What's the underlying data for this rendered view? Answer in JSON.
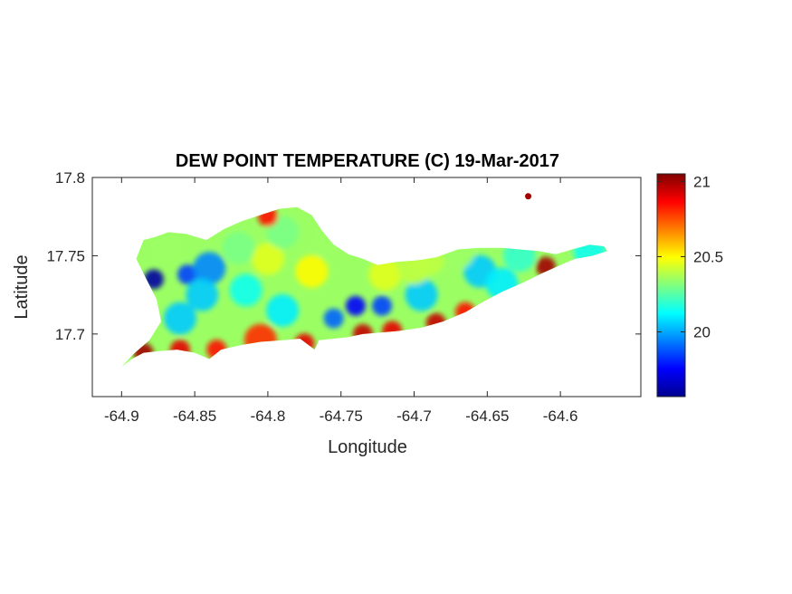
{
  "chart_data": {
    "type": "heatmap",
    "title": "DEW POINT TEMPERATURE (C) 19-Mar-2017",
    "xlabel": "Longitude",
    "ylabel": "Latitude",
    "xlim": [
      -64.92,
      -64.545
    ],
    "ylim": [
      17.66,
      17.8
    ],
    "x_ticks": [
      -64.9,
      -64.85,
      -64.8,
      -64.75,
      -64.7,
      -64.65,
      -64.6
    ],
    "x_tick_labels": [
      "-64.9",
      "-64.85",
      "-64.8",
      "-64.75",
      "-64.7",
      "-64.65",
      "-64.6"
    ],
    "y_ticks": [
      17.8,
      17.75,
      17.7
    ],
    "y_tick_labels": [
      "17.8",
      "17.75",
      "17.7"
    ],
    "colorbar": {
      "colormap": "jet",
      "range": [
        19.57,
        21.05
      ],
      "ticks": [
        20,
        20.5,
        21
      ],
      "tick_labels": [
        "20",
        "20.5",
        "21"
      ]
    },
    "grid": false,
    "island_outline": [
      [
        -64.9,
        17.679
      ],
      [
        -64.893,
        17.684
      ],
      [
        -64.885,
        17.688
      ],
      [
        -64.875,
        17.689
      ],
      [
        -64.862,
        17.69
      ],
      [
        -64.85,
        17.688
      ],
      [
        -64.84,
        17.684
      ],
      [
        -64.832,
        17.69
      ],
      [
        -64.818,
        17.693
      ],
      [
        -64.805,
        17.695
      ],
      [
        -64.79,
        17.696
      ],
      [
        -64.778,
        17.697
      ],
      [
        -64.768,
        17.69
      ],
      [
        -64.765,
        17.696
      ],
      [
        -64.755,
        17.697
      ],
      [
        -64.745,
        17.698
      ],
      [
        -64.735,
        17.7
      ],
      [
        -64.722,
        17.701
      ],
      [
        -64.71,
        17.702
      ],
      [
        -64.695,
        17.704
      ],
      [
        -64.68,
        17.708
      ],
      [
        -64.665,
        17.714
      ],
      [
        -64.652,
        17.721
      ],
      [
        -64.64,
        17.727
      ],
      [
        -64.625,
        17.733
      ],
      [
        -64.612,
        17.739
      ],
      [
        -64.6,
        17.744
      ],
      [
        -64.59,
        17.748
      ],
      [
        -64.578,
        17.75
      ],
      [
        -64.568,
        17.753
      ],
      [
        -64.57,
        17.756
      ],
      [
        -64.58,
        17.757
      ],
      [
        -64.592,
        17.754
      ],
      [
        -64.603,
        17.751
      ],
      [
        -64.615,
        17.753
      ],
      [
        -64.628,
        17.754
      ],
      [
        -64.64,
        17.755
      ],
      [
        -64.655,
        17.755
      ],
      [
        -64.67,
        17.754
      ],
      [
        -64.685,
        17.749
      ],
      [
        -64.698,
        17.747
      ],
      [
        -64.712,
        17.746
      ],
      [
        -64.725,
        17.744
      ],
      [
        -64.735,
        17.748
      ],
      [
        -64.745,
        17.751
      ],
      [
        -64.755,
        17.757
      ],
      [
        -64.763,
        17.766
      ],
      [
        -64.77,
        17.776
      ],
      [
        -64.78,
        17.781
      ],
      [
        -64.792,
        17.78
      ],
      [
        -64.805,
        17.776
      ],
      [
        -64.818,
        17.772
      ],
      [
        -64.83,
        17.767
      ],
      [
        -64.842,
        17.76
      ],
      [
        -64.856,
        17.764
      ],
      [
        -64.868,
        17.765
      ],
      [
        -64.877,
        17.762
      ],
      [
        -64.885,
        17.76
      ],
      [
        -64.89,
        17.748
      ],
      [
        -64.883,
        17.735
      ],
      [
        -64.876,
        17.722
      ],
      [
        -64.873,
        17.708
      ],
      [
        -64.881,
        17.696
      ],
      [
        -64.892,
        17.687
      ],
      [
        -64.9,
        17.679
      ]
    ],
    "cay": [
      -64.622,
      17.788
    ],
    "hotspots": [
      {
        "lon": -64.878,
        "lat": 17.735,
        "value": 19.62
      },
      {
        "lon": -64.855,
        "lat": 17.738,
        "value": 19.85
      },
      {
        "lon": -64.84,
        "lat": 17.742,
        "value": 19.95
      },
      {
        "lon": -64.86,
        "lat": 17.71,
        "value": 20.05
      },
      {
        "lon": -64.845,
        "lat": 17.725,
        "value": 20.05
      },
      {
        "lon": -64.815,
        "lat": 17.728,
        "value": 20.15
      },
      {
        "lon": -64.79,
        "lat": 17.715,
        "value": 20.1
      },
      {
        "lon": -64.74,
        "lat": 17.718,
        "value": 19.75
      },
      {
        "lon": -64.722,
        "lat": 17.718,
        "value": 19.85
      },
      {
        "lon": -64.755,
        "lat": 17.71,
        "value": 19.9
      },
      {
        "lon": -64.695,
        "lat": 17.725,
        "value": 20.05
      },
      {
        "lon": -64.655,
        "lat": 17.74,
        "value": 20.05
      },
      {
        "lon": -64.64,
        "lat": 17.732,
        "value": 20.1
      },
      {
        "lon": -64.628,
        "lat": 17.75,
        "value": 20.2
      },
      {
        "lon": -64.58,
        "lat": 17.753,
        "value": 20.15
      },
      {
        "lon": -64.8,
        "lat": 17.748,
        "value": 20.45
      },
      {
        "lon": -64.77,
        "lat": 17.74,
        "value": 20.5
      },
      {
        "lon": -64.72,
        "lat": 17.738,
        "value": 20.45
      },
      {
        "lon": -64.7,
        "lat": 17.742,
        "value": 20.4
      },
      {
        "lon": -64.69,
        "lat": 17.748,
        "value": 20.4
      },
      {
        "lon": -64.67,
        "lat": 17.752,
        "value": 20.35
      },
      {
        "lon": -64.76,
        "lat": 17.76,
        "value": 20.35
      },
      {
        "lon": -64.79,
        "lat": 17.765,
        "value": 20.3
      },
      {
        "lon": -64.82,
        "lat": 17.755,
        "value": 20.3
      },
      {
        "lon": -64.87,
        "lat": 17.757,
        "value": 20.35
      },
      {
        "lon": -64.8,
        "lat": 17.775,
        "value": 20.85
      },
      {
        "lon": -64.885,
        "lat": 17.688,
        "value": 21.0
      },
      {
        "lon": -64.86,
        "lat": 17.69,
        "value": 20.9
      },
      {
        "lon": -64.835,
        "lat": 17.69,
        "value": 20.85
      },
      {
        "lon": -64.805,
        "lat": 17.696,
        "value": 20.8
      },
      {
        "lon": -64.775,
        "lat": 17.694,
        "value": 20.9
      },
      {
        "lon": -64.735,
        "lat": 17.7,
        "value": 20.95
      },
      {
        "lon": -64.715,
        "lat": 17.702,
        "value": 20.9
      },
      {
        "lon": -64.685,
        "lat": 17.707,
        "value": 20.95
      },
      {
        "lon": -64.665,
        "lat": 17.714,
        "value": 20.85
      },
      {
        "lon": -64.61,
        "lat": 17.743,
        "value": 21.0
      },
      {
        "lon": -64.622,
        "lat": 17.788,
        "value": 21.0
      }
    ]
  }
}
